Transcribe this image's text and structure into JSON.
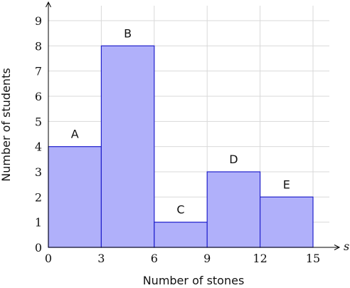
{
  "chart_data": {
    "type": "bar",
    "histogram": true,
    "bins": [
      {
        "x0": 0,
        "x1": 3,
        "value": 4,
        "label": "A"
      },
      {
        "x0": 3,
        "x1": 6,
        "value": 8,
        "label": "B"
      },
      {
        "x0": 6,
        "x1": 9,
        "value": 1,
        "label": "C"
      },
      {
        "x0": 9,
        "x1": 12,
        "value": 3,
        "label": "D"
      },
      {
        "x0": 12,
        "x1": 15,
        "value": 2,
        "label": "E"
      }
    ],
    "xlabel": "Number of stones",
    "ylabel": "Number of students",
    "x_axis_variable": "s",
    "xticks": [
      0,
      3,
      6,
      9,
      12,
      15
    ],
    "yticks": [
      0,
      1,
      2,
      3,
      4,
      5,
      6,
      7,
      8,
      9
    ],
    "xlim": [
      0,
      15
    ],
    "ylim": [
      0,
      9
    ],
    "grid": true,
    "colors": {
      "bar_fill": "#b0b0fa",
      "bar_stroke": "#2222cc",
      "grid": "#d9d9d9",
      "axis": "#000000"
    }
  }
}
